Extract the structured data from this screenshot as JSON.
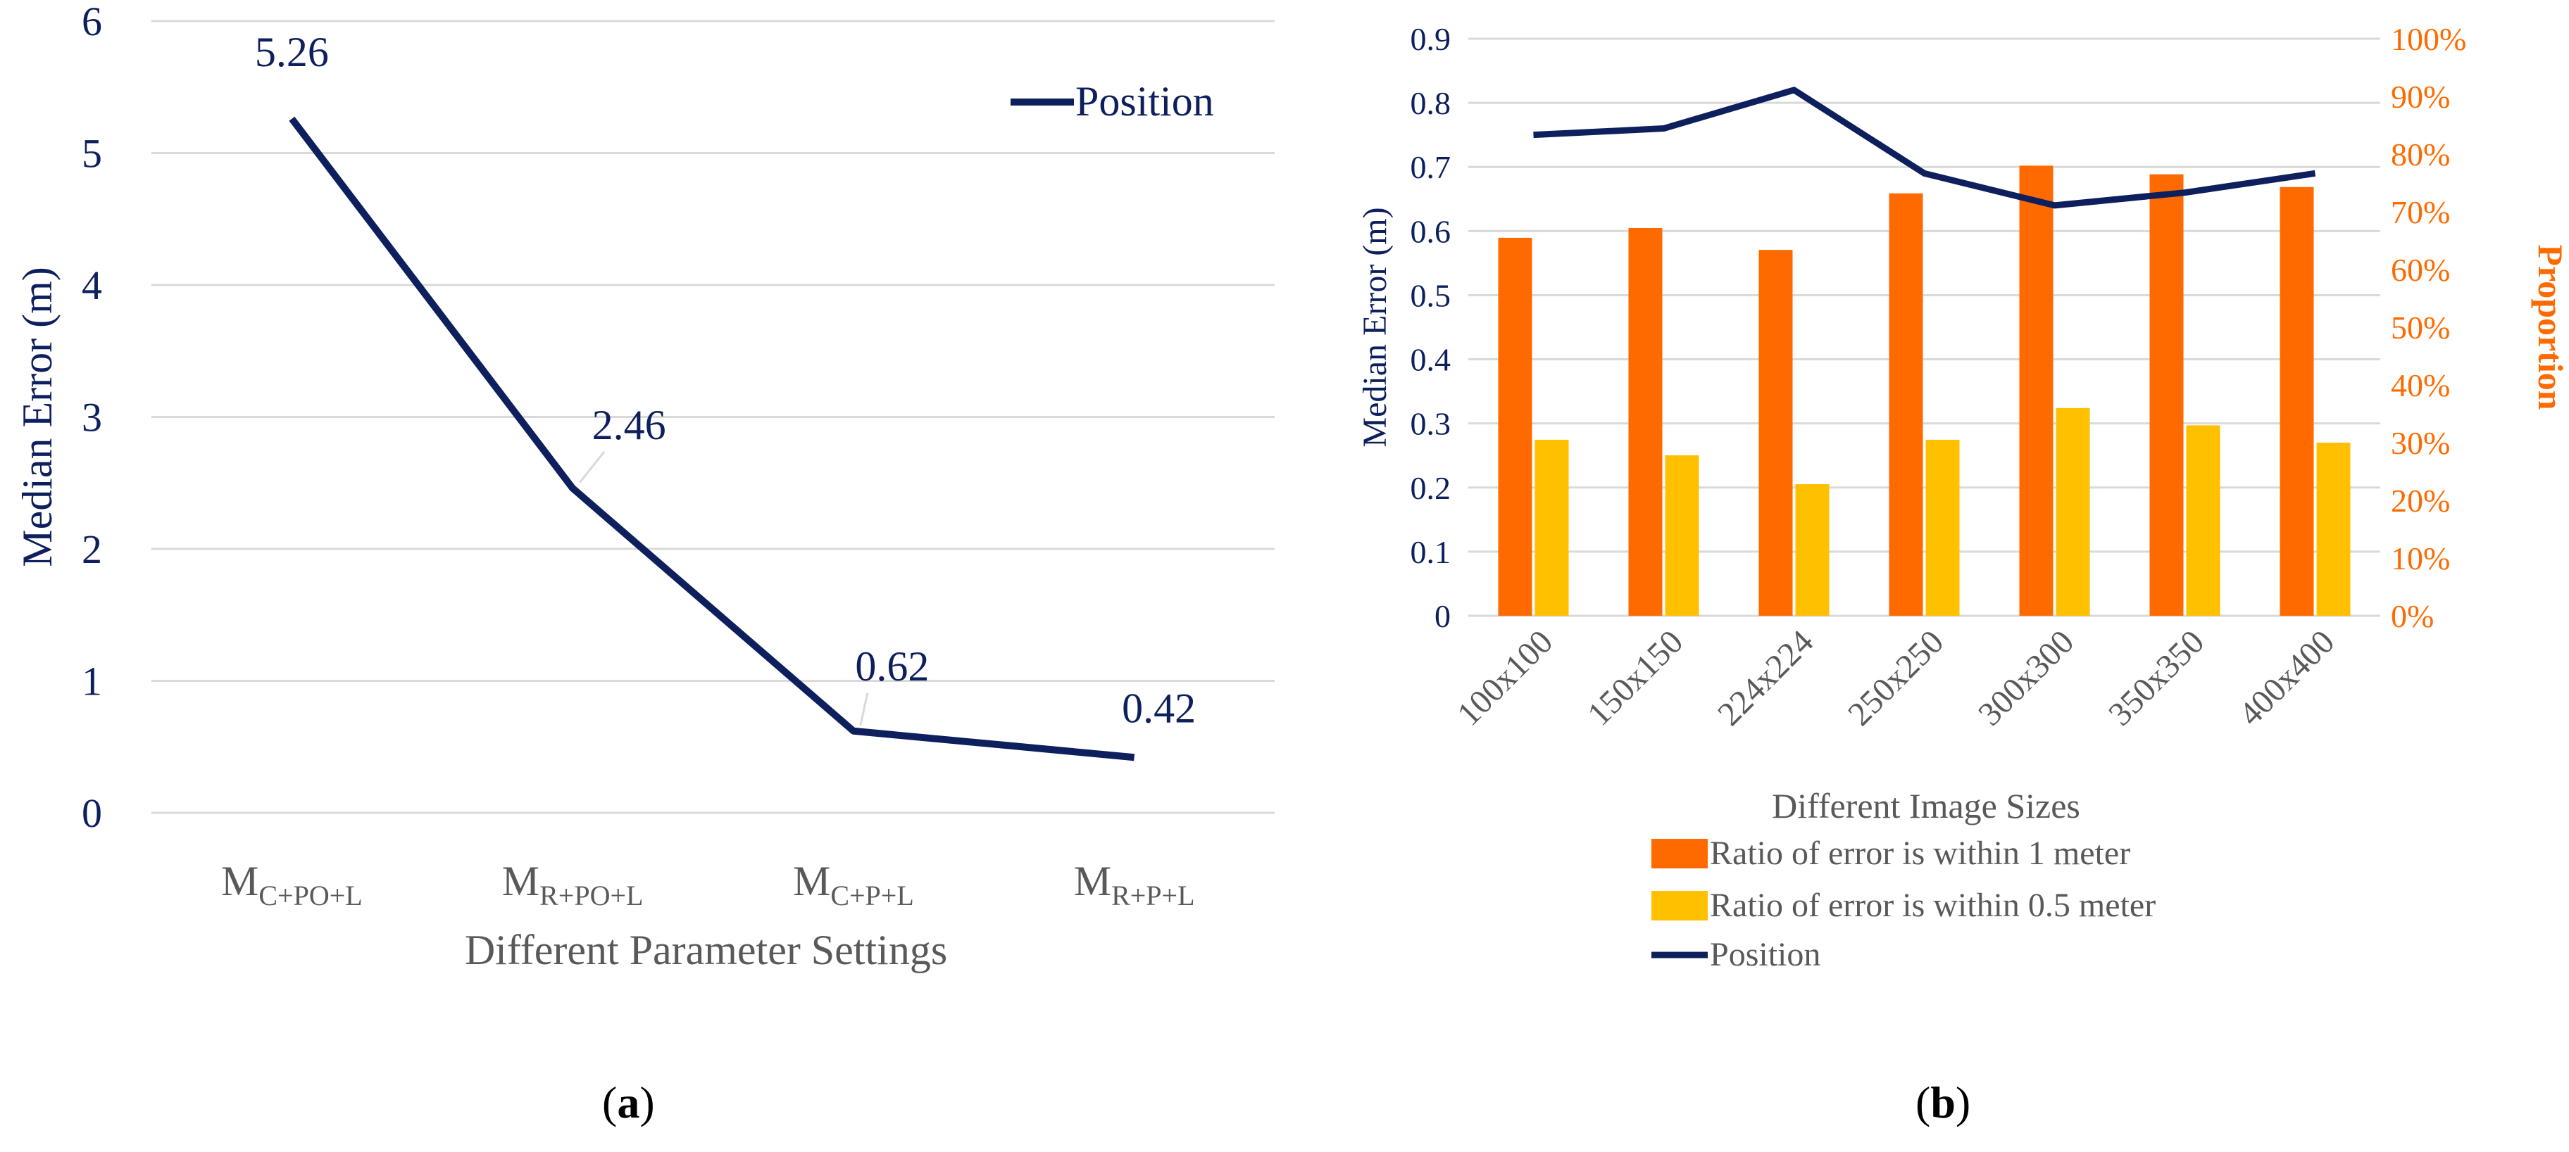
{
  "colors": {
    "navy": "#0d1f5c",
    "orange": "#ff6a00",
    "gold": "#ffc000",
    "grid": "#d9d9d9",
    "axis_text": "#595959",
    "right_axis_text": "#ff6a00"
  },
  "chart_data": [
    {
      "type": "line",
      "panel": "a",
      "title": "",
      "xlabel": "Different Parameter Settings",
      "ylabel": "Median Error (m)",
      "ylim": [
        0,
        6
      ],
      "yticks": [
        "0",
        "1",
        "2",
        "3",
        "4",
        "5",
        "6"
      ],
      "categories": [
        {
          "base": "M",
          "sub": "C+PO+L"
        },
        {
          "base": "M",
          "sub": "R+PO+L"
        },
        {
          "base": "M",
          "sub": "C+P+L"
        },
        {
          "base": "M",
          "sub": "R+P+L"
        }
      ],
      "series": [
        {
          "name": "Position",
          "values": [
            5.26,
            2.46,
            0.62,
            0.42
          ],
          "labels": [
            "5.26",
            "2.46",
            "0.62",
            "0.42"
          ]
        }
      ],
      "legend": "top-right",
      "grid": true
    },
    {
      "type": "bar+line",
      "panel": "b",
      "title": "",
      "xlabel": "Different Image Sizes",
      "ylabel": "Median Error (m)",
      "ylabel_right": "Proportion",
      "ylim": [
        0,
        0.9
      ],
      "ylim_right": [
        0,
        1.0
      ],
      "yticks": [
        "0",
        "0.1",
        "0.2",
        "0.3",
        "0.4",
        "0.5",
        "0.6",
        "0.7",
        "0.8",
        "0.9"
      ],
      "yticks_right": [
        "0%",
        "10%",
        "20%",
        "30%",
        "40%",
        "50%",
        "60%",
        "70%",
        "80%",
        "90%",
        "100%"
      ],
      "categories": [
        "100x100",
        "150x150",
        "224x224",
        "250x250",
        "300x300",
        "350x350",
        "400x400"
      ],
      "series": [
        {
          "name": "Ratio of error is within 1 meter",
          "type": "bar",
          "axis": "right",
          "values": [
            0.655,
            0.672,
            0.634,
            0.732,
            0.78,
            0.765,
            0.743
          ]
        },
        {
          "name": "Ratio of error is within 0.5 meter",
          "type": "bar",
          "axis": "right",
          "values": [
            0.305,
            0.278,
            0.228,
            0.305,
            0.36,
            0.33,
            0.3
          ]
        },
        {
          "name": "Position",
          "type": "line",
          "axis": "left",
          "values": [
            0.75,
            0.76,
            0.82,
            0.69,
            0.64,
            0.66,
            0.69
          ]
        }
      ],
      "legend": "bottom",
      "grid": true
    }
  ],
  "captions": {
    "a": "a",
    "b": "b"
  }
}
